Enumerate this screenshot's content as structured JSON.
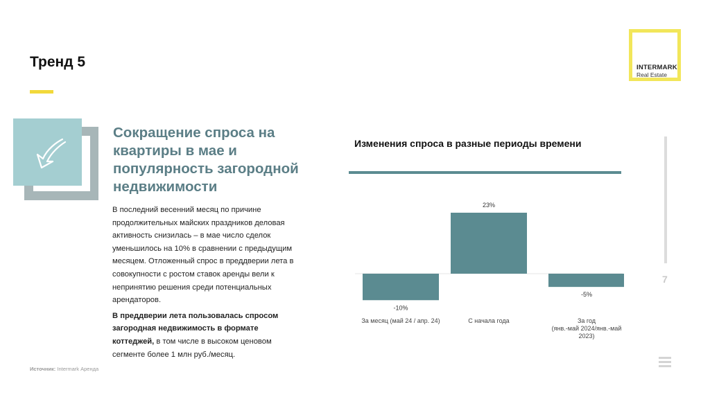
{
  "slide": {
    "title": "Тренд 5",
    "heading": "Сокращение спроса на квартиры в мае и популярность загородной недвижимости",
    "paragraph1": "В последний весенний месяц по причине продолжительных майских праздников деловая активность снизилась – в мае число сделок уменьшилось на 10% в сравнении с предыдущим месяцем. Отложенный спрос в преддверии лета в совокупности с ростом ставок аренды вели к непринятию решения среди потенциальных арендаторов.",
    "paragraph2_bold": "В преддверии лета пользовалась спросом загородная недвижимость в формате коттеджей,",
    "paragraph2_rest": " в том числе в высоком ценовом сегменте более 1 млн руб./месяц.",
    "source_label": "Источник:",
    "source_value": " Intermark Аренда",
    "page_number": "7",
    "icon": "arrow-down-left-icon"
  },
  "logo": {
    "line1": "INTERMARK",
    "line2": "Real Estate",
    "color": "#f2e65a"
  },
  "colors": {
    "accent": "#5b8b91",
    "heading": "#5b7e86",
    "yellow": "#f2d93b",
    "icon_bg": "#a4ced1"
  },
  "chart_data": {
    "type": "bar",
    "title": "Изменения спроса в разные периоды времени",
    "categories": [
      [
        "За месяц (май 24 / апр. 24)"
      ],
      [
        "С начала года"
      ],
      [
        "За год",
        "(янв.-май 2024/янв.-май",
        "2023)"
      ]
    ],
    "values": [
      -10,
      23,
      -5
    ],
    "data_labels": [
      "-10%",
      "23%",
      "-5%"
    ],
    "unit": "%",
    "ylim": [
      -12,
      25
    ],
    "bar_color": "#5b8b91"
  }
}
